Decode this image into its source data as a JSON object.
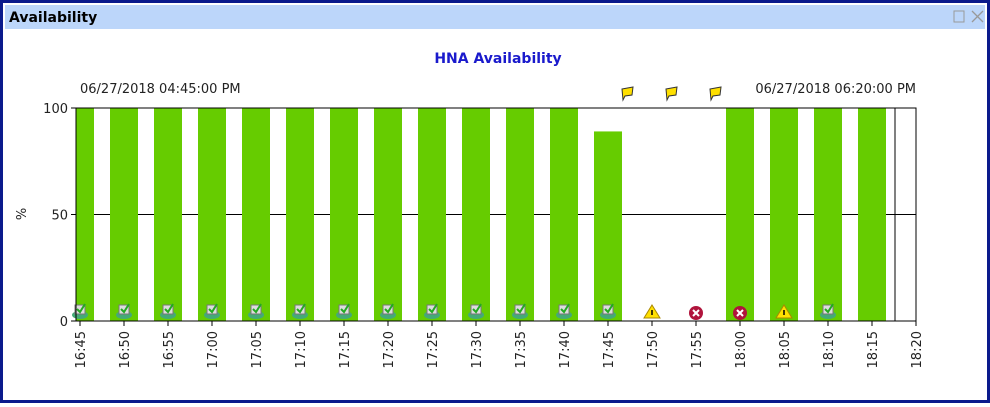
{
  "window_title": "Availability",
  "chart_data": {
    "type": "bar",
    "title": "HNA Availability",
    "y_label": "%",
    "start_annotation": "06/27/2018 04:45:00 PM",
    "end_annotation": "06/27/2018 06:20:00 PM",
    "categories": [
      "16:45",
      "16:50",
      "16:55",
      "17:00",
      "17:05",
      "17:10",
      "17:15",
      "17:20",
      "17:25",
      "17:30",
      "17:35",
      "17:40",
      "17:45",
      "17:50",
      "17:55",
      "18:00",
      "18:05",
      "18:10",
      "18:15",
      "18:20"
    ],
    "values": [
      100,
      100,
      100,
      100,
      100,
      100,
      100,
      100,
      100,
      100,
      100,
      100,
      89,
      null,
      null,
      100,
      100,
      100,
      100,
      null
    ],
    "status": [
      "ok",
      "ok",
      "ok",
      "ok",
      "ok",
      "ok",
      "ok",
      "ok",
      "ok",
      "ok",
      "ok",
      "ok",
      "ok",
      "warning",
      "error",
      "error",
      "warning",
      "ok",
      null,
      null
    ],
    "flags": [
      null,
      null,
      null,
      null,
      null,
      null,
      null,
      null,
      null,
      null,
      null,
      null,
      null,
      "flag",
      "flag",
      "flag",
      null,
      null,
      null,
      null
    ],
    "color": "#66cc00",
    "ylim": [
      0,
      100
    ],
    "yticks": [
      0,
      50,
      100
    ],
    "grid": true
  }
}
